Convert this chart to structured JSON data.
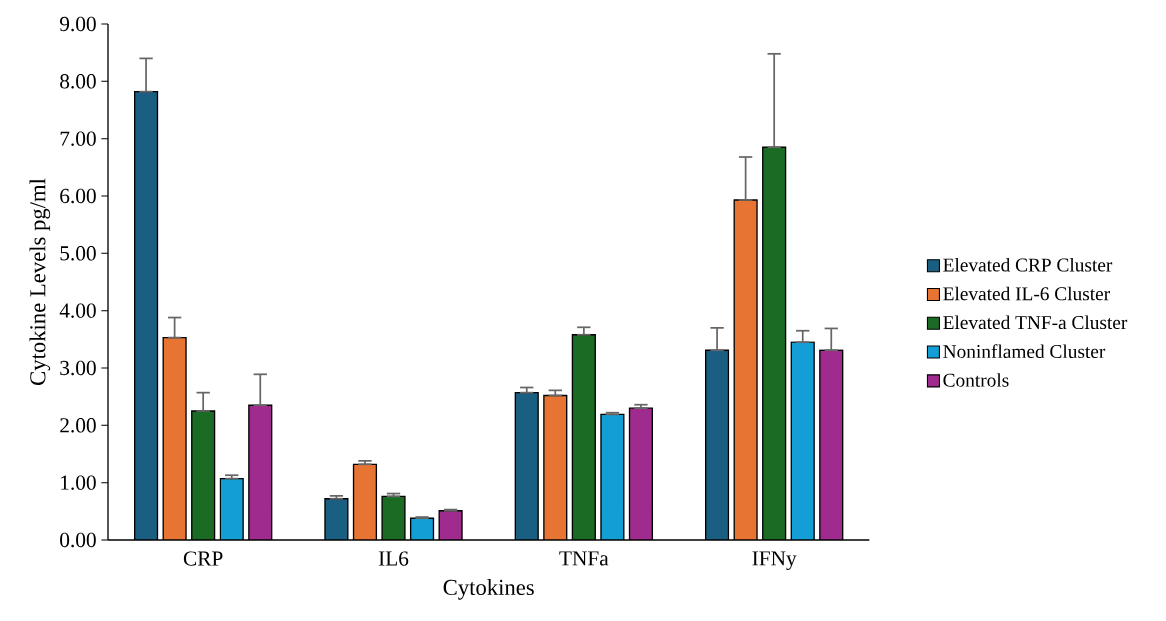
{
  "chart_data": {
    "type": "bar",
    "xlabel": "Cytokines",
    "ylabel": "Cytokine Levels pg/ml",
    "categories": [
      "CRP",
      "IL6",
      "TNFa",
      "IFNy"
    ],
    "series": [
      {
        "name": "Elevated CRP Cluster",
        "color": "#1a5e82",
        "values": [
          7.82,
          0.72,
          2.57,
          3.31
        ],
        "errors": [
          [
            7.82,
            8.4
          ],
          [
            0.72,
            0.77
          ],
          [
            2.57,
            2.66
          ],
          [
            3.31,
            3.7
          ]
        ]
      },
      {
        "name": "Elevated IL-6 Cluster",
        "color": "#e87434",
        "values": [
          3.53,
          1.32,
          2.52,
          5.93
        ],
        "errors": [
          [
            3.53,
            3.88
          ],
          [
            1.32,
            1.38
          ],
          [
            2.52,
            2.61
          ],
          [
            5.93,
            6.68
          ]
        ]
      },
      {
        "name": "Elevated TNF-a Cluster",
        "color": "#1c6b24",
        "values": [
          2.25,
          0.76,
          3.58,
          6.85
        ],
        "errors": [
          [
            2.25,
            2.57
          ],
          [
            0.76,
            0.81
          ],
          [
            3.58,
            3.71
          ],
          [
            6.85,
            8.48
          ]
        ]
      },
      {
        "name": "Noninflamed Cluster",
        "color": "#149ed6",
        "values": [
          1.07,
          0.38,
          2.19,
          3.45
        ],
        "errors": [
          [
            1.07,
            1.13
          ],
          [
            0.38,
            0.4
          ],
          [
            2.19,
            2.22
          ],
          [
            3.45,
            3.65
          ]
        ]
      },
      {
        "name": "Controls",
        "color": "#a02b8e",
        "values": [
          2.35,
          0.51,
          2.3,
          3.31
        ],
        "errors": [
          [
            2.35,
            2.89
          ],
          [
            0.51,
            0.53
          ],
          [
            2.3,
            2.36
          ],
          [
            3.31,
            3.69
          ]
        ]
      }
    ],
    "ylim": [
      0,
      9
    ],
    "yticks": [
      {
        "value": 0,
        "label": "0.00"
      },
      {
        "value": 1,
        "label": "1.00"
      },
      {
        "value": 2,
        "label": "2.00"
      },
      {
        "value": 3,
        "label": "3.00"
      },
      {
        "value": 4,
        "label": "4.00"
      },
      {
        "value": 5,
        "label": "5.00"
      },
      {
        "value": 6,
        "label": "6.00"
      },
      {
        "value": 7,
        "label": "7.00"
      },
      {
        "value": 8,
        "label": "8.00"
      },
      {
        "value": 9,
        "label": "9.00"
      }
    ],
    "grid": false,
    "legend": "right"
  }
}
